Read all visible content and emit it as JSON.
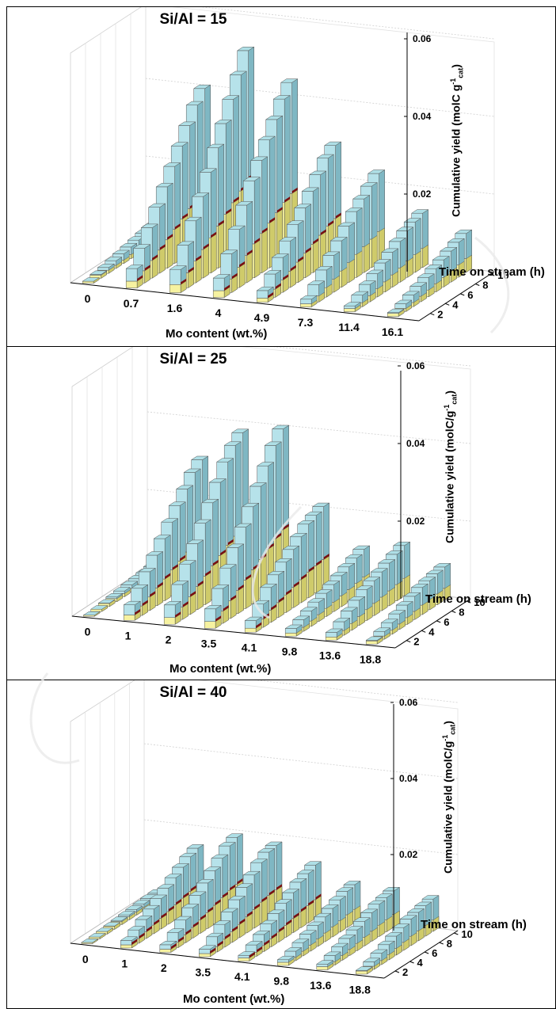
{
  "chart_data": [
    {
      "type": "3d-bar",
      "title": "Si/Al = 15",
      "xlabel": "Mo content (wt.%)",
      "zlabel": "Time on stream (h)",
      "ylabel": "Cumulative yield (molC g",
      "ylabel_sup": "-1",
      "ylabel_sub": "cat",
      "ylabel_end": ")",
      "categories": [
        "0",
        "0.7",
        "1.6",
        "4",
        "4.9",
        "7.3",
        "11.4",
        "16.1"
      ],
      "time": [
        1,
        2,
        3,
        4,
        5,
        6,
        7,
        8,
        9,
        10
      ],
      "time_ticks": [
        "2",
        "4",
        "6",
        "8",
        "10"
      ],
      "ylim": [
        0,
        0.06
      ],
      "y_ticks": [
        "0.02",
        "0.04",
        "0.06"
      ],
      "values": [
        [
          0.0005,
          0.001,
          0.0015,
          0.002,
          0.0025,
          0.003,
          0.0035,
          0.004,
          0.0045,
          0.005
        ],
        [
          0.005,
          0.009,
          0.013,
          0.017,
          0.021,
          0.025,
          0.029,
          0.033,
          0.037,
          0.04
        ],
        [
          0.006,
          0.011,
          0.016,
          0.021,
          0.026,
          0.031,
          0.036,
          0.041,
          0.046,
          0.051
        ],
        [
          0.005,
          0.01,
          0.015,
          0.02,
          0.025,
          0.029,
          0.033,
          0.037,
          0.041,
          0.044
        ],
        [
          0.003,
          0.006,
          0.009,
          0.012,
          0.015,
          0.018,
          0.021,
          0.024,
          0.027,
          0.029
        ],
        [
          0.002,
          0.0045,
          0.007,
          0.0095,
          0.012,
          0.0145,
          0.017,
          0.019,
          0.021,
          0.023
        ],
        [
          0.0015,
          0.003,
          0.0045,
          0.006,
          0.0075,
          0.009,
          0.0105,
          0.012,
          0.013,
          0.014
        ],
        [
          0.001,
          0.002,
          0.003,
          0.004,
          0.005,
          0.006,
          0.007,
          0.008,
          0.009,
          0.01
        ]
      ],
      "colors": {
        "top": "#aedfe6",
        "front": "#b6e2ea",
        "side": "#7fb7c3",
        "base": "#f6f2a0",
        "baseSide": "#cfcb6a",
        "band": "#7a1010"
      }
    },
    {
      "type": "3d-bar",
      "title": "Si/Al = 25",
      "xlabel": "Mo content (wt.%)",
      "zlabel": "Time on stream (h)",
      "ylabel": "Cumulative yield (molC/g",
      "ylabel_sup": "-1",
      "ylabel_sub": "cat",
      "ylabel_end": ")",
      "categories": [
        "0",
        "1",
        "2",
        "3.5",
        "4.1",
        "9.8",
        "13.6",
        "18.8"
      ],
      "time": [
        1,
        2,
        3,
        4,
        5,
        6,
        7,
        8,
        9,
        10
      ],
      "time_ticks": [
        "2",
        "4",
        "6",
        "8",
        "10"
      ],
      "ylim": [
        0,
        0.06
      ],
      "y_ticks": [
        "0.02",
        "0.04",
        "0.06"
      ],
      "values": [
        [
          0.0003,
          0.0006,
          0.0009,
          0.0012,
          0.0015,
          0.0018,
          0.0021,
          0.0024,
          0.0027,
          0.003
        ],
        [
          0.004,
          0.007,
          0.01,
          0.013,
          0.016,
          0.019,
          0.022,
          0.025,
          0.028,
          0.03
        ],
        [
          0.005,
          0.009,
          0.013,
          0.017,
          0.021,
          0.025,
          0.029,
          0.033,
          0.036,
          0.038
        ],
        [
          0.005,
          0.009,
          0.013,
          0.017,
          0.021,
          0.025,
          0.029,
          0.033,
          0.037,
          0.04
        ],
        [
          0.003,
          0.006,
          0.009,
          0.011,
          0.013,
          0.015,
          0.017,
          0.019,
          0.02,
          0.021
        ],
        [
          0.002,
          0.003,
          0.004,
          0.005,
          0.006,
          0.007,
          0.008,
          0.009,
          0.01,
          0.011
        ],
        [
          0.002,
          0.0035,
          0.005,
          0.0065,
          0.008,
          0.009,
          0.01,
          0.011,
          0.012,
          0.013
        ],
        [
          0.001,
          0.002,
          0.003,
          0.004,
          0.005,
          0.006,
          0.007,
          0.0075,
          0.008,
          0.0085
        ]
      ],
      "colors": {
        "top": "#aedfe6",
        "front": "#b6e2ea",
        "side": "#7fb7c3",
        "base": "#f6f2a0",
        "baseSide": "#cfcb6a",
        "band": "#7a1010"
      }
    },
    {
      "type": "3d-bar",
      "title": "Si/Al = 40",
      "xlabel": "Mo content (wt.%)",
      "zlabel": "Time on stream (h)",
      "ylabel": "Cumulative yield (molC/g",
      "ylabel_sup": "-1",
      "ylabel_sub": "cat",
      "ylabel_end": ")",
      "categories": [
        "0",
        "1",
        "2",
        "3.5",
        "4.1",
        "9.8",
        "13.6",
        "18.8"
      ],
      "time": [
        1,
        2,
        3,
        4,
        5,
        6,
        7,
        8,
        9,
        10
      ],
      "time_ticks": [
        "2",
        "4",
        "6",
        "8",
        "10"
      ],
      "ylim": [
        0,
        0.06
      ],
      "y_ticks": [
        "0.02",
        "0.04",
        "0.06"
      ],
      "values": [
        [
          0.0003,
          0.0005,
          0.0007,
          0.0009,
          0.0011,
          0.0013,
          0.0015,
          0.0017,
          0.0019,
          0.002
        ],
        [
          0.002,
          0.0035,
          0.005,
          0.0065,
          0.008,
          0.0095,
          0.011,
          0.0125,
          0.014,
          0.015
        ],
        [
          0.002,
          0.004,
          0.006,
          0.008,
          0.01,
          0.012,
          0.014,
          0.016,
          0.018,
          0.019
        ],
        [
          0.002,
          0.004,
          0.006,
          0.008,
          0.01,
          0.012,
          0.014,
          0.016,
          0.0175,
          0.018
        ],
        [
          0.0015,
          0.003,
          0.0045,
          0.006,
          0.0075,
          0.009,
          0.0105,
          0.012,
          0.013,
          0.014
        ],
        [
          0.0015,
          0.0025,
          0.0035,
          0.0045,
          0.0055,
          0.0065,
          0.0075,
          0.0085,
          0.0095,
          0.01
        ],
        [
          0.0015,
          0.0025,
          0.0035,
          0.0045,
          0.0055,
          0.0065,
          0.0075,
          0.0085,
          0.009,
          0.0095
        ],
        [
          0.001,
          0.002,
          0.003,
          0.004,
          0.005,
          0.006,
          0.007,
          0.0075,
          0.008,
          0.0085
        ]
      ],
      "colors": {
        "top": "#aedfe6",
        "front": "#b6e2ea",
        "side": "#7fb7c3",
        "base": "#f6f2a0",
        "baseSide": "#cfcb6a",
        "band": "#7a1010"
      }
    }
  ]
}
